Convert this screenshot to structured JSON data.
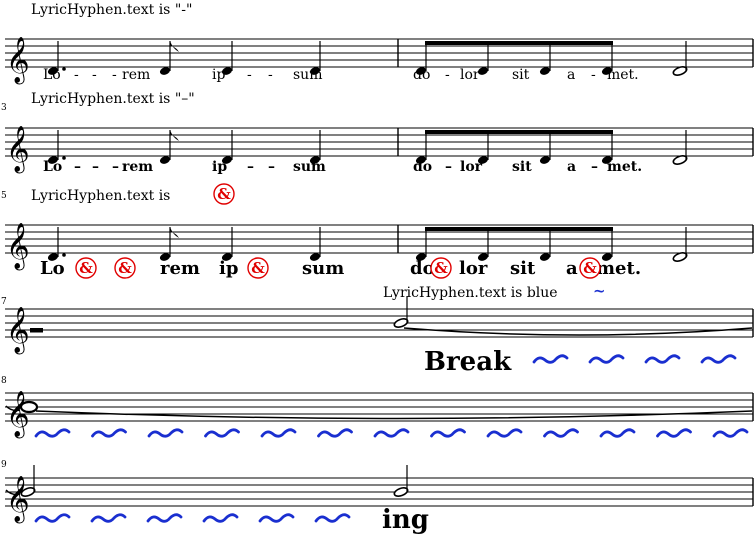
{
  "systems": [
    {
      "number": "",
      "markup": "LyricHyphen.text is \"-\"",
      "lyrics": [
        "Lo",
        "-",
        "-",
        "-",
        "rem",
        "ip",
        "-",
        "-",
        "sum",
        "do",
        "-",
        "lor",
        "sit",
        "a",
        "-",
        "met."
      ]
    },
    {
      "number": "3",
      "markup": "LyricHyphen.text is \"–\"",
      "lyrics": [
        "Lo",
        "–",
        "–",
        "–",
        "rem",
        "ip",
        "–",
        "–",
        "sum",
        "do",
        "–",
        "lor",
        "sit",
        "a",
        "–",
        "met."
      ]
    },
    {
      "number": "5",
      "markup_prefix": "LyricHyphen.text is",
      "lyrics": [
        "Lo",
        "rem",
        "ip",
        "sum",
        "do",
        "lor",
        "sit",
        "a",
        "met."
      ],
      "hyphen_glyph": "&"
    },
    {
      "number": "7",
      "markup_prefix": "LyricHyphen.text is blue",
      "markup_glyph": "~",
      "lyric": "Break"
    },
    {
      "number": "8"
    },
    {
      "number": "9",
      "lyric": "ing"
    }
  ],
  "colors": {
    "ink": "#000000",
    "hyphen_circle": "#e00000",
    "blue_hyphen": "#1a2fd0"
  },
  "icons": [
    "treble-clef-icon",
    "ampersand-circle-icon",
    "wavy-hyphen-icon"
  ]
}
